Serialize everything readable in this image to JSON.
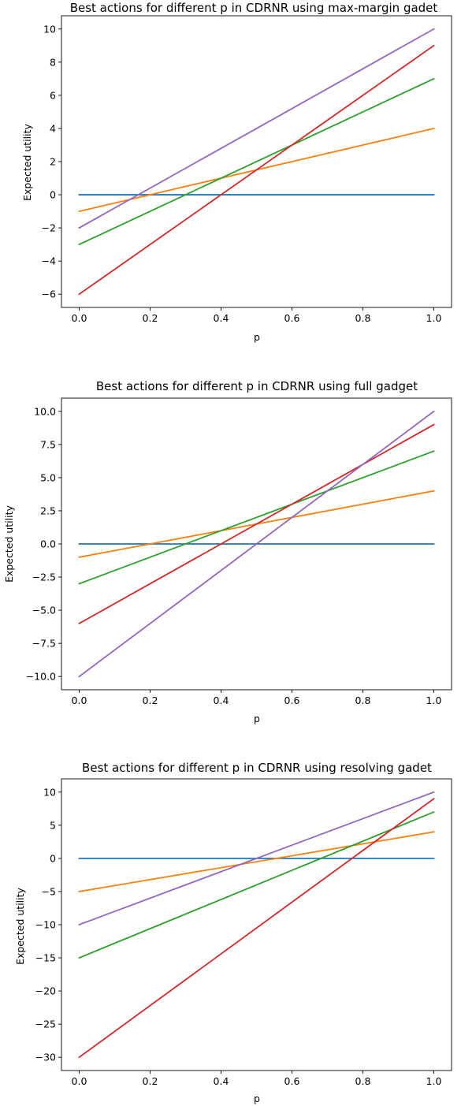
{
  "chart_data": [
    {
      "type": "line",
      "title": "Best actions for different p in CDRNR using max-margin gadet",
      "xlabel": "p",
      "ylabel": "Expected utility",
      "xlim": [
        -0.05,
        1.05
      ],
      "ylim": [
        -6.8,
        10.8
      ],
      "xticks": [
        0.0,
        0.2,
        0.4,
        0.6,
        0.8,
        1.0
      ],
      "xtick_labels": [
        "0.0",
        "0.2",
        "0.4",
        "0.6",
        "0.8",
        "1.0"
      ],
      "yticks": [
        -6,
        -4,
        -2,
        0,
        2,
        4,
        6,
        8,
        10
      ],
      "ytick_labels": [
        "−6",
        "−4",
        "−2",
        "0",
        "2",
        "4",
        "6",
        "8",
        "10"
      ],
      "grid": false,
      "series": [
        {
          "color": "#1f77b4",
          "x": [
            0,
            1
          ],
          "values": [
            0,
            0
          ]
        },
        {
          "color": "#ff7f0e",
          "x": [
            0,
            1
          ],
          "values": [
            -1,
            4
          ]
        },
        {
          "color": "#2ca02c",
          "x": [
            0,
            1
          ],
          "values": [
            -3,
            7
          ]
        },
        {
          "color": "#d62728",
          "x": [
            0,
            1
          ],
          "values": [
            -6,
            9
          ]
        },
        {
          "color": "#9467bd",
          "x": [
            0,
            1
          ],
          "values": [
            -2,
            10
          ]
        }
      ]
    },
    {
      "type": "line",
      "title": "Best actions for different p in CDRNR using full gadget",
      "xlabel": "p",
      "ylabel": "Expected utility",
      "xlim": [
        -0.05,
        1.05
      ],
      "ylim": [
        -11.0,
        11.0
      ],
      "xticks": [
        0.0,
        0.2,
        0.4,
        0.6,
        0.8,
        1.0
      ],
      "xtick_labels": [
        "0.0",
        "0.2",
        "0.4",
        "0.6",
        "0.8",
        "1.0"
      ],
      "yticks": [
        -10,
        -7.5,
        -5,
        -2.5,
        0,
        2.5,
        5,
        7.5,
        10
      ],
      "ytick_labels": [
        "−10.0",
        "−7.5",
        "−5.0",
        "−2.5",
        "0.0",
        "2.5",
        "5.0",
        "7.5",
        "10.0"
      ],
      "grid": false,
      "series": [
        {
          "color": "#1f77b4",
          "x": [
            0,
            1
          ],
          "values": [
            0,
            0
          ]
        },
        {
          "color": "#ff7f0e",
          "x": [
            0,
            1
          ],
          "values": [
            -1,
            4
          ]
        },
        {
          "color": "#2ca02c",
          "x": [
            0,
            1
          ],
          "values": [
            -3,
            7
          ]
        },
        {
          "color": "#d62728",
          "x": [
            0,
            1
          ],
          "values": [
            -6,
            9
          ]
        },
        {
          "color": "#9467bd",
          "x": [
            0,
            1
          ],
          "values": [
            -10,
            10
          ]
        }
      ]
    },
    {
      "type": "line",
      "title": "Best actions for different p in CDRNR using resolving gadet",
      "xlabel": "p",
      "ylabel": "Expected utility",
      "xlim": [
        -0.05,
        1.05
      ],
      "ylim": [
        -32.0,
        12.0
      ],
      "xticks": [
        0.0,
        0.2,
        0.4,
        0.6,
        0.8,
        1.0
      ],
      "xtick_labels": [
        "0.0",
        "0.2",
        "0.4",
        "0.6",
        "0.8",
        "1.0"
      ],
      "yticks": [
        -30,
        -25,
        -20,
        -15,
        -10,
        -5,
        0,
        5,
        10
      ],
      "ytick_labels": [
        "−30",
        "−25",
        "−20",
        "−15",
        "−10",
        "−5",
        "0",
        "5",
        "10"
      ],
      "grid": false,
      "series": [
        {
          "color": "#1f77b4",
          "x": [
            0,
            1
          ],
          "values": [
            0,
            0
          ]
        },
        {
          "color": "#ff7f0e",
          "x": [
            0,
            1
          ],
          "values": [
            -5,
            4
          ]
        },
        {
          "color": "#2ca02c",
          "x": [
            0,
            1
          ],
          "values": [
            -15,
            7
          ]
        },
        {
          "color": "#d62728",
          "x": [
            0,
            1
          ],
          "values": [
            -30,
            9
          ]
        },
        {
          "color": "#9467bd",
          "x": [
            0,
            1
          ],
          "values": [
            -10,
            10
          ]
        }
      ]
    }
  ]
}
